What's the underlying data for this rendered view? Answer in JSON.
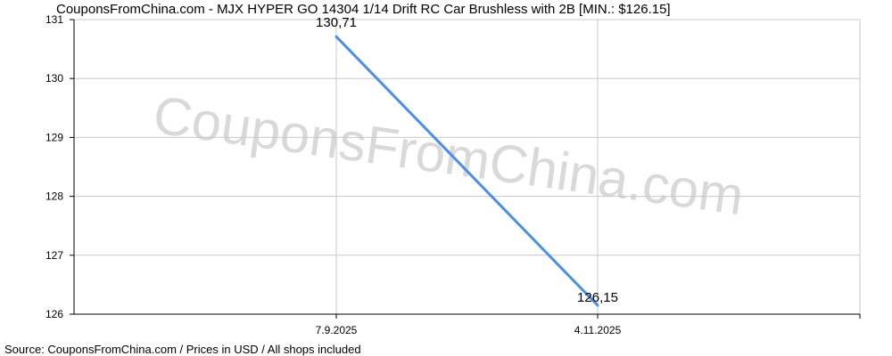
{
  "title": "CouponsFromChina.com - MJX HYPER GO 14304 1/14 Drift RC Car Brushless with 2B [MIN.: $126.15]",
  "watermark": "CouponsFromChina.com",
  "footer": "Source: CouponsFromChina.com / Prices in USD / All shops included",
  "colors": {
    "line": "#4a8fe8",
    "grid": "#c8c8c8",
    "axis": "#000000",
    "watermark": "#d9d9d9"
  },
  "chart_data": {
    "type": "line",
    "title": "CouponsFromChina.com - MJX HYPER GO 14304 1/14 Drift RC Car Brushless with 2B [MIN.: $126.15]",
    "xlabel": "",
    "ylabel": "",
    "x_ticks": [
      "7.9.2025",
      "4.11.2025"
    ],
    "y_ticks": [
      126,
      127,
      128,
      129,
      130,
      131
    ],
    "ylim": [
      126,
      131
    ],
    "grid": true,
    "series": [
      {
        "points": [
          {
            "x": "7.9.2025",
            "y": 130.71,
            "label": "130,71"
          },
          {
            "x": "4.11.2025",
            "y": 126.15,
            "label": "126,15"
          }
        ]
      }
    ]
  }
}
